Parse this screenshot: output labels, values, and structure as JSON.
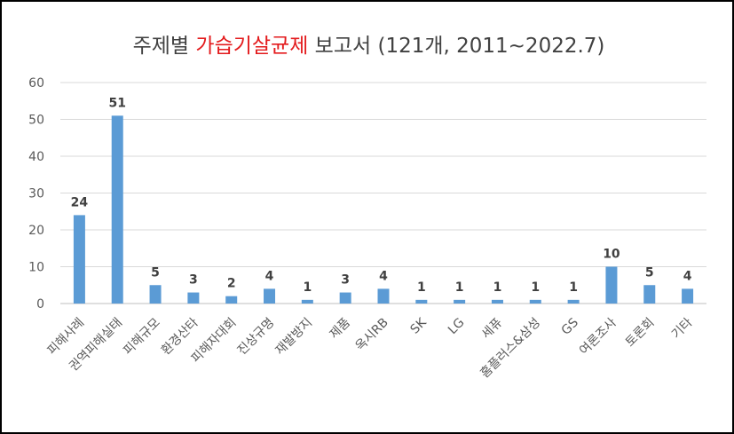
{
  "chart_data": {
    "type": "bar",
    "title_parts": {
      "before": "주제별 ",
      "highlight": "가습기살균제",
      "after": " 보고서 (121개, 2011~2022.7)"
    },
    "categories": [
      "피해사례",
      "권역피해실태",
      "피해규모",
      "환경산타",
      "피해자대회",
      "진상규명",
      "재발방지",
      "제품",
      "옥시RB",
      "SK",
      "LG",
      "세퓨",
      "홈플러스&삼성",
      "GS",
      "여론조사",
      "토론회",
      "기타"
    ],
    "values": [
      24,
      51,
      5,
      3,
      2,
      4,
      1,
      3,
      4,
      1,
      1,
      1,
      1,
      1,
      10,
      5,
      4
    ],
    "ylim": [
      0,
      60
    ],
    "yticks": [
      0,
      10,
      20,
      30,
      40,
      50,
      60
    ],
    "grid": true,
    "legend": "none",
    "bar_color": "#5b9bd5",
    "highlight_color": "#e31a1c"
  }
}
